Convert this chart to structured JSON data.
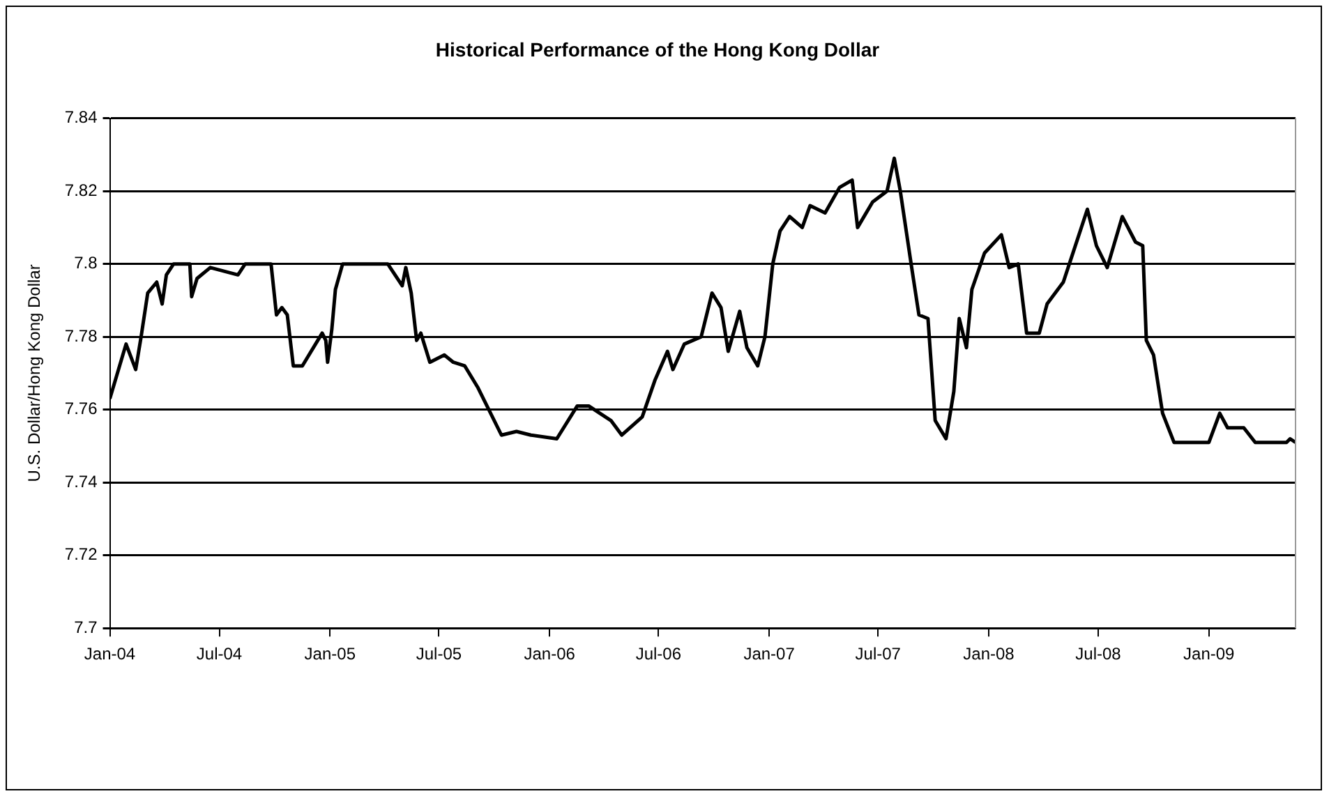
{
  "chart_data": {
    "type": "line",
    "title": "Historical Performance of the Hong Kong Dollar",
    "ylabel": "U.S. Dollar/Hong Kong Dollar",
    "xlim": [
      "2004-01-01",
      "2009-05-25"
    ],
    "xticks": [
      {
        "value": "2004-01",
        "label": "Jan-04"
      },
      {
        "value": "2004-07",
        "label": "Jul-04"
      },
      {
        "value": "2005-01",
        "label": "Jan-05"
      },
      {
        "value": "2005-07",
        "label": "Jul-05"
      },
      {
        "value": "2006-01",
        "label": "Jan-06"
      },
      {
        "value": "2006-07",
        "label": "Jul-06"
      },
      {
        "value": "2007-01",
        "label": "Jan-07"
      },
      {
        "value": "2007-07",
        "label": "Jul-07"
      },
      {
        "value": "2008-01",
        "label": "Jan-08"
      },
      {
        "value": "2008-07",
        "label": "Jul-08"
      },
      {
        "value": "2009-01",
        "label": "Jan-09"
      }
    ],
    "ylim": [
      7.7,
      7.84
    ],
    "yticks": [
      7.7,
      7.72,
      7.74,
      7.76,
      7.78,
      7.8,
      7.82,
      7.84
    ],
    "grid": "y",
    "legend": false,
    "x": [
      "2004-01-01",
      "2004-01-28",
      "2004-02-13",
      "2004-02-22",
      "2004-03-04",
      "2004-03-19",
      "2004-03-28",
      "2004-04-04",
      "2004-04-16",
      "2004-05-13",
      "2004-05-16",
      "2004-05-25",
      "2004-06-16",
      "2004-08-01",
      "2004-08-13",
      "2004-09-25",
      "2004-10-04",
      "2004-10-13",
      "2004-10-22",
      "2004-11-01",
      "2004-11-16",
      "2004-12-19",
      "2004-12-25",
      "2004-12-28",
      "2005-01-04",
      "2005-01-10",
      "2005-01-22",
      "2005-04-07",
      "2005-05-01",
      "2005-05-07",
      "2005-05-16",
      "2005-05-25",
      "2005-06-01",
      "2005-06-16",
      "2005-07-10",
      "2005-07-25",
      "2005-08-13",
      "2005-09-04",
      "2005-10-13",
      "2005-11-07",
      "2005-12-01",
      "2006-01-13",
      "2006-02-16",
      "2006-03-07",
      "2006-04-13",
      "2006-05-01",
      "2006-06-04",
      "2006-06-25",
      "2006-07-16",
      "2006-07-25",
      "2006-08-13",
      "2006-09-10",
      "2006-09-28",
      "2006-10-13",
      "2006-10-25",
      "2006-11-13",
      "2006-11-25",
      "2006-12-13",
      "2006-12-25",
      "2007-01-07",
      "2007-01-19",
      "2007-02-04",
      "2007-02-25",
      "2007-03-10",
      "2007-04-04",
      "2007-04-28",
      "2007-05-19",
      "2007-05-28",
      "2007-06-22",
      "2007-07-16",
      "2007-07-28",
      "2007-08-07",
      "2007-08-25",
      "2007-09-07",
      "2007-09-22",
      "2007-10-04",
      "2007-10-22",
      "2007-11-04",
      "2007-11-13",
      "2007-11-25",
      "2007-12-04",
      "2007-12-25",
      "2008-01-22",
      "2008-02-04",
      "2008-02-19",
      "2008-03-04",
      "2008-03-25",
      "2008-04-07",
      "2008-05-04",
      "2008-05-16",
      "2008-06-13",
      "2008-06-28",
      "2008-07-16",
      "2008-08-10",
      "2008-09-01",
      "2008-09-13",
      "2008-09-19",
      "2008-10-01",
      "2008-10-16",
      "2008-11-04",
      "2009-01-01",
      "2009-01-19",
      "2009-02-01",
      "2009-02-28",
      "2009-03-19",
      "2009-05-10",
      "2009-05-16",
      "2009-05-25"
    ],
    "series": [
      {
        "color": "#000000",
        "values": [
          7.763,
          7.778,
          7.771,
          7.78,
          7.792,
          7.795,
          7.789,
          7.797,
          7.8,
          7.8,
          7.791,
          7.796,
          7.799,
          7.797,
          7.8,
          7.8,
          7.786,
          7.788,
          7.786,
          7.772,
          7.772,
          7.781,
          7.779,
          7.773,
          7.782,
          7.793,
          7.8,
          7.8,
          7.794,
          7.799,
          7.792,
          7.779,
          7.781,
          7.773,
          7.775,
          7.773,
          7.772,
          7.766,
          7.753,
          7.754,
          7.753,
          7.752,
          7.761,
          7.761,
          7.757,
          7.753,
          7.758,
          7.768,
          7.776,
          7.771,
          7.778,
          7.78,
          7.792,
          7.788,
          7.776,
          7.787,
          7.777,
          7.772,
          7.78,
          7.8,
          7.809,
          7.813,
          7.81,
          7.816,
          7.814,
          7.821,
          7.823,
          7.81,
          7.817,
          7.82,
          7.829,
          7.82,
          7.8,
          7.786,
          7.785,
          7.757,
          7.752,
          7.765,
          7.785,
          7.777,
          7.793,
          7.803,
          7.808,
          7.799,
          7.8,
          7.781,
          7.781,
          7.789,
          7.795,
          7.801,
          7.815,
          7.805,
          7.799,
          7.813,
          7.806,
          7.805,
          7.779,
          7.775,
          7.759,
          7.751,
          7.751,
          7.759,
          7.755,
          7.755,
          7.751,
          7.751,
          7.752,
          7.751
        ]
      }
    ]
  }
}
